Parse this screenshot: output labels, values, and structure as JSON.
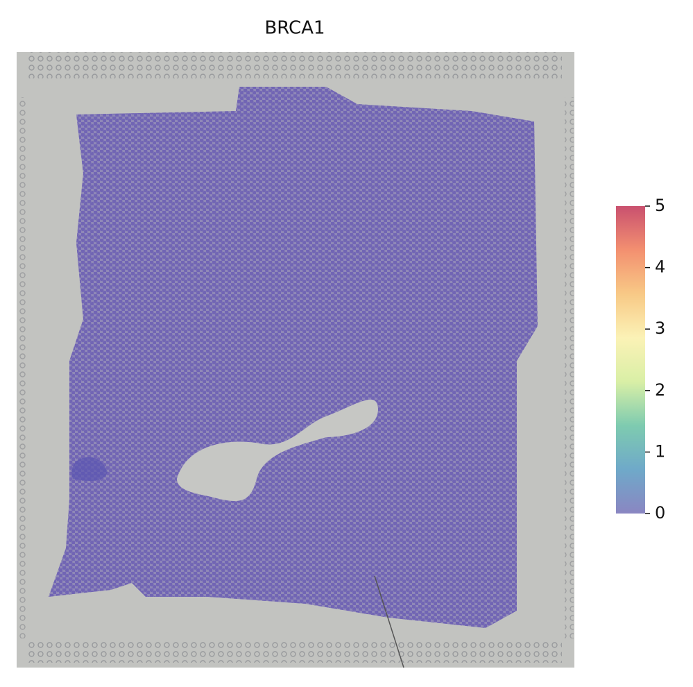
{
  "chart_data": {
    "type": "spatial",
    "title": "BRCA1",
    "clim": [
      0,
      5
    ],
    "cticks": [
      0,
      1,
      2,
      3,
      4,
      5
    ],
    "colormap": [
      "#8a86c2",
      "#6fa9c9",
      "#7ecbb0",
      "#d9efa6",
      "#fbf2b6",
      "#f8c986",
      "#f39070",
      "#c9506f"
    ]
  }
}
